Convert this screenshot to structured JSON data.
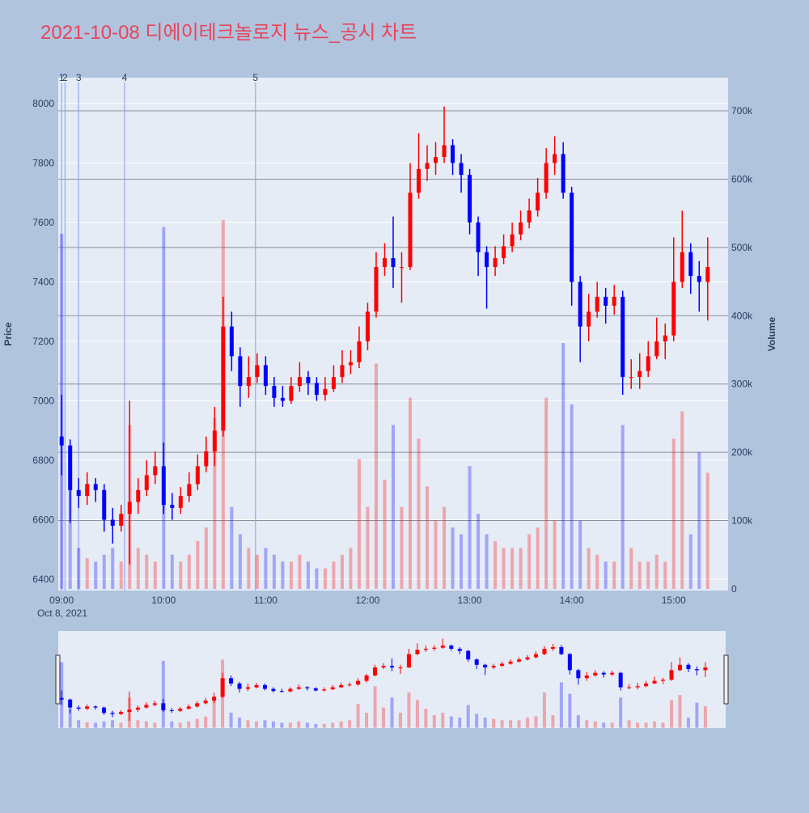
{
  "chart_data": {
    "type": "candlestick",
    "title": "2021-10-08 디에이테크놀로지 뉴스_공시 차트",
    "y_title": "Price",
    "y2_title": "Volume",
    "x_date_label": "Oct 8, 2021",
    "up_color": "#ff0000",
    "down_color": "#0000ff",
    "grid": true,
    "xlim": [
      "08:58",
      "15:32"
    ],
    "xticks": [
      "09:00",
      "10:00",
      "11:00",
      "12:00",
      "13:00",
      "14:00",
      "15:00"
    ],
    "ylim": [
      6362,
      8087
    ],
    "yticks": [
      6400,
      6600,
      6800,
      7000,
      7200,
      7400,
      7600,
      7800,
      8000
    ],
    "y2lim": [
      -2400,
      748600
    ],
    "y2ticks": [
      0,
      {
        "value": 100000,
        "label": "100k"
      },
      {
        "value": 200000,
        "label": "200k"
      },
      {
        "value": 300000,
        "label": "300k"
      },
      {
        "value": 400000,
        "label": "400k"
      },
      {
        "value": 500000,
        "label": "500k"
      },
      {
        "value": 600000,
        "label": "600k"
      },
      {
        "value": 700000,
        "label": "700k"
      }
    ],
    "annotations": [
      {
        "x": "09:00",
        "text": "1"
      },
      {
        "x": "09:02",
        "text": "2"
      },
      {
        "x": "09:10",
        "text": "3"
      },
      {
        "x": "09:37",
        "text": "4"
      },
      {
        "x": "10:54",
        "text": "5"
      }
    ],
    "x": [
      "09:00",
      "09:05",
      "09:10",
      "09:15",
      "09:20",
      "09:25",
      "09:30",
      "09:35",
      "09:40",
      "09:45",
      "09:50",
      "09:55",
      "10:00",
      "10:05",
      "10:10",
      "10:15",
      "10:20",
      "10:25",
      "10:30",
      "10:35",
      "10:40",
      "10:45",
      "10:50",
      "10:55",
      "11:00",
      "11:05",
      "11:10",
      "11:15",
      "11:20",
      "11:25",
      "11:30",
      "11:35",
      "11:40",
      "11:45",
      "11:50",
      "11:55",
      "12:00",
      "12:05",
      "12:10",
      "12:15",
      "12:20",
      "12:25",
      "12:30",
      "12:35",
      "12:40",
      "12:45",
      "12:50",
      "12:55",
      "13:00",
      "13:05",
      "13:10",
      "13:15",
      "13:20",
      "13:25",
      "13:30",
      "13:35",
      "13:40",
      "13:45",
      "13:50",
      "13:55",
      "14:00",
      "14:05",
      "14:10",
      "14:15",
      "14:20",
      "14:25",
      "14:30",
      "14:35",
      "14:40",
      "14:45",
      "14:50",
      "14:55",
      "15:00",
      "15:05",
      "15:10",
      "15:15",
      "15:20"
    ],
    "open": [
      6880,
      6850,
      6700,
      6680,
      6720,
      6700,
      6600,
      6580,
      6620,
      6660,
      6700,
      6750,
      6780,
      6650,
      6640,
      6680,
      6720,
      6780,
      6830,
      6900,
      7250,
      7150,
      7050,
      7080,
      7120,
      7050,
      7010,
      7000,
      7050,
      7080,
      7060,
      7020,
      7040,
      7080,
      7120,
      7130,
      7200,
      7300,
      7450,
      7480,
      7450,
      7450,
      7700,
      7780,
      7800,
      7820,
      7860,
      7800,
      7760,
      7600,
      7500,
      7450,
      7480,
      7520,
      7560,
      7600,
      7640,
      7700,
      7800,
      7830,
      7700,
      7400,
      7250,
      7300,
      7350,
      7320,
      7350,
      7080,
      7080,
      7100,
      7150,
      7200,
      7220,
      7400,
      7500,
      7420,
      7400
    ],
    "high": [
      7020,
      6870,
      6740,
      6760,
      6740,
      6720,
      6640,
      6650,
      7000,
      6740,
      6800,
      6830,
      6860,
      6690,
      6710,
      6760,
      6820,
      6880,
      6980,
      7350,
      7300,
      7180,
      7150,
      7160,
      7150,
      7080,
      7050,
      7080,
      7130,
      7100,
      7080,
      7080,
      7120,
      7170,
      7170,
      7250,
      7330,
      7500,
      7530,
      7620,
      7500,
      7800,
      7900,
      7860,
      7870,
      7990,
      7880,
      7830,
      7780,
      7620,
      7520,
      7520,
      7560,
      7600,
      7640,
      7680,
      7750,
      7850,
      7890,
      7870,
      7720,
      7420,
      7360,
      7400,
      7380,
      7390,
      7370,
      7140,
      7160,
      7200,
      7280,
      7260,
      7550,
      7640,
      7530,
      7470,
      7550
    ],
    "low": [
      6750,
      6590,
      6640,
      6650,
      6660,
      6560,
      6520,
      6560,
      6450,
      6620,
      6680,
      6720,
      6620,
      6600,
      6620,
      6660,
      6700,
      6760,
      6780,
      6880,
      7100,
      6980,
      7010,
      7060,
      7020,
      6980,
      6980,
      6990,
      7030,
      7020,
      7000,
      7000,
      7030,
      7060,
      7090,
      7110,
      7170,
      7280,
      7420,
      7380,
      7330,
      7440,
      7680,
      7740,
      7760,
      7800,
      7760,
      7700,
      7560,
      7420,
      7310,
      7420,
      7460,
      7500,
      7540,
      7580,
      7620,
      7680,
      7760,
      7680,
      7320,
      7130,
      7200,
      7280,
      7260,
      7290,
      7020,
      7040,
      7040,
      7080,
      7140,
      7140,
      7200,
      7380,
      7360,
      7300,
      7270
    ],
    "close": [
      6850,
      6700,
      6680,
      6720,
      6700,
      6600,
      6580,
      6620,
      6660,
      6700,
      6750,
      6780,
      6650,
      6640,
      6680,
      6720,
      6780,
      6830,
      6900,
      7250,
      7150,
      7050,
      7080,
      7120,
      7050,
      7010,
      7000,
      7050,
      7080,
      7060,
      7020,
      7040,
      7080,
      7120,
      7130,
      7200,
      7300,
      7450,
      7480,
      7450,
      7450,
      7700,
      7780,
      7800,
      7820,
      7860,
      7800,
      7760,
      7600,
      7500,
      7450,
      7480,
      7520,
      7560,
      7600,
      7640,
      7700,
      7800,
      7830,
      7700,
      7400,
      7250,
      7300,
      7350,
      7320,
      7350,
      7080,
      7080,
      7100,
      7150,
      7200,
      7220,
      7400,
      7500,
      7420,
      7400,
      7450
    ],
    "volume": [
      520000,
      150000,
      60000,
      45000,
      40000,
      50000,
      60000,
      40000,
      240000,
      60000,
      50000,
      40000,
      530000,
      50000,
      40000,
      50000,
      70000,
      90000,
      250000,
      540000,
      120000,
      80000,
      60000,
      50000,
      60000,
      50000,
      40000,
      40000,
      50000,
      40000,
      30000,
      30000,
      40000,
      50000,
      60000,
      190000,
      120000,
      330000,
      160000,
      240000,
      120000,
      280000,
      220000,
      150000,
      100000,
      120000,
      90000,
      80000,
      180000,
      110000,
      80000,
      70000,
      60000,
      60000,
      60000,
      80000,
      90000,
      280000,
      100000,
      360000,
      270000,
      100000,
      60000,
      50000,
      40000,
      40000,
      240000,
      60000,
      40000,
      40000,
      50000,
      40000,
      220000,
      260000,
      80000,
      200000,
      170000
    ]
  }
}
